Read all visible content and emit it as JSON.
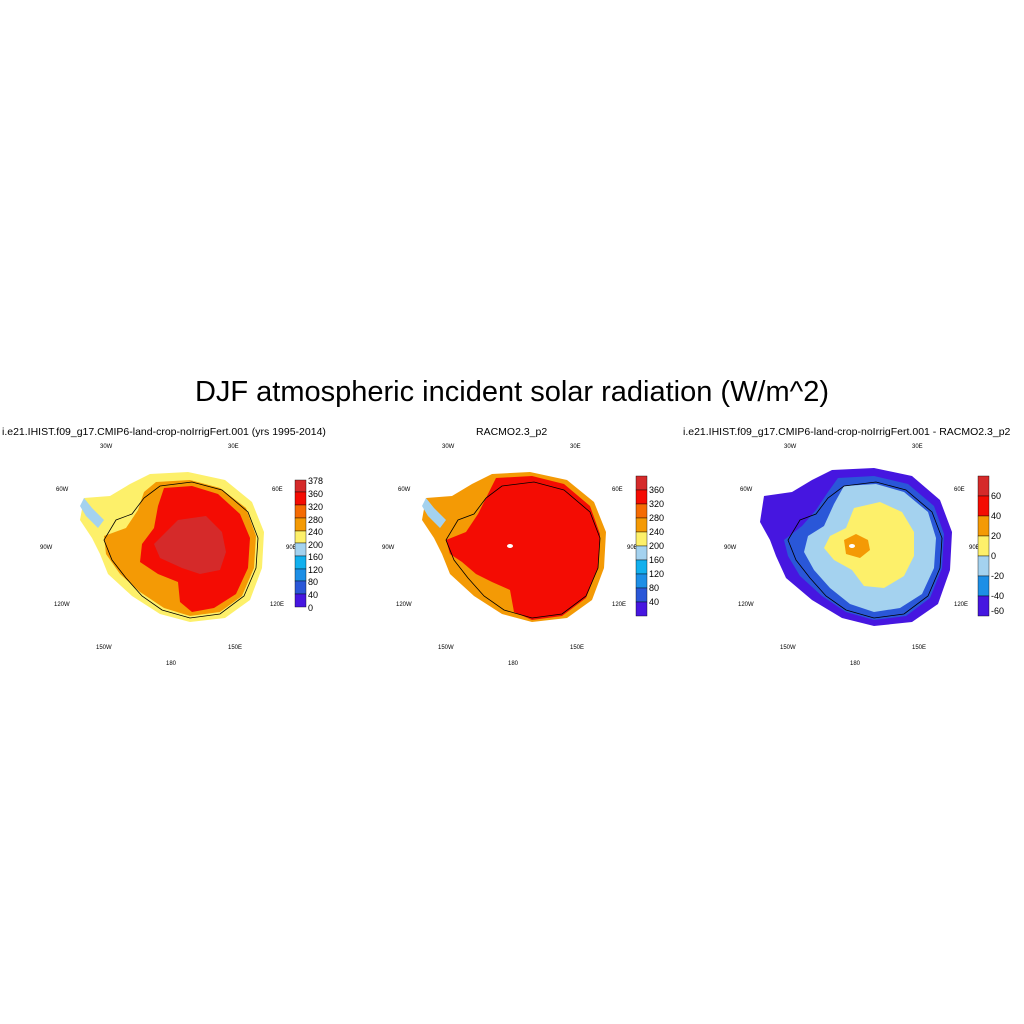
{
  "figure_title": "DJF atmospheric incident solar radiation (W/m^2)",
  "colors": {
    "deep_blue": "#4616e0",
    "blue": "#2a57d8",
    "mid_blue": "#1d8fe6",
    "sky_blue": "#12b0ee",
    "light_blue": "#a4d2ef",
    "light_yellow": "#fdf06a",
    "yellow": "#fdd126",
    "orange": "#f49a05",
    "dark_orange": "#f56b03",
    "red": "#f40c03",
    "dark_red": "#d52a2a",
    "coastline": "#000000"
  },
  "panels": [
    {
      "title": "i.e21.IHIST.f09_g17.CMIP6-land-crop-noIrrigFert.001 (yrs 1995-2014)",
      "colorbar_labels": [
        "378",
        "360",
        "320",
        "280",
        "240",
        "200",
        "160",
        "120",
        "80",
        "40",
        "0"
      ],
      "geo_labels": {
        "top_left": "30W",
        "top_right": "30E",
        "upper_left": "60W",
        "upper_right": "60E",
        "mid_left": "90W",
        "mid_right": "90E",
        "lower_left": "120W",
        "lower_right": "120E",
        "bottom_left": "150W",
        "bottom_right": "150E",
        "bottom": "180"
      }
    },
    {
      "title": "RACMO2.3_p2",
      "colorbar_labels": [
        "360",
        "320",
        "280",
        "240",
        "200",
        "160",
        "120",
        "80",
        "40"
      ],
      "geo_labels": {
        "top_left": "30W",
        "top_right": "30E",
        "upper_left": "60W",
        "upper_right": "60E",
        "mid_left": "90W",
        "mid_right": "90E",
        "lower_left": "120W",
        "lower_right": "120E",
        "bottom_left": "150W",
        "bottom_right": "150E",
        "bottom": "180"
      }
    },
    {
      "title": "i.e21.IHIST.f09_g17.CMIP6-land-crop-noIrrigFert.001 - RACMO2.3_p2",
      "colorbar_labels": [
        "60",
        "40",
        "20",
        "0",
        "-20",
        "-40",
        "-60"
      ],
      "geo_labels": {
        "top_left": "30W",
        "top_right": "30E",
        "upper_left": "60W",
        "upper_right": "60E",
        "mid_left": "90W",
        "mid_right": "90E",
        "lower_left": "120W",
        "lower_right": "120E",
        "bottom_left": "150W",
        "bottom_right": "150E",
        "bottom": "180"
      }
    }
  ]
}
